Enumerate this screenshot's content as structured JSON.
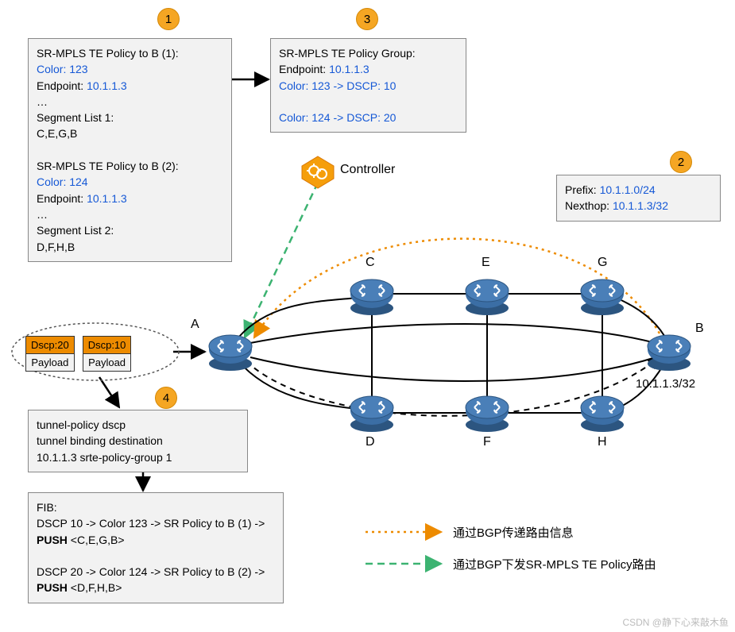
{
  "badges": {
    "b1": "1",
    "b2": "2",
    "b3": "3",
    "b4": "4"
  },
  "box1": {
    "l1": "SR-MPLS TE Policy to B (1):",
    "l2": "Color: 123",
    "l3": "Endpoint: 10.1.1.3",
    "l4": "…",
    "l5": " Segment List 1:",
    "l6": "  C,E,G,B",
    "l7": "",
    "l8": "SR-MPLS TE Policy to B (2):",
    "l9": "Color: 124",
    "l10": "Endpoint: 10.1.1.3",
    "l11": "…",
    "l12": " Segment List 2:",
    "l13": "  D,F,H,B"
  },
  "box3": {
    "l1": "SR-MPLS TE Policy Group:",
    "l2": "Endpoint: 10.1.1.3",
    "l3": "Color: 123 -> DSCP: 10",
    "l4": "",
    "l5": "Color: 124 -> DSCP: 20"
  },
  "box2": {
    "l1": "Prefix: 10.1.1.0/24",
    "l2": "Nexthop: 10.1.1.3/32"
  },
  "box4": {
    "l1": "tunnel-policy dscp",
    "l2": " tunnel binding destination",
    "l3": "10.1.1.3 srte-policy-group 1"
  },
  "box5": {
    "l1": "FIB:",
    "l2a": "DSCP 10 -> Color 123 -> SR Policy to B (1) -> ",
    "l2b": "PUSH",
    "l2c": " <C,E,G,B>",
    "l3": "",
    "l4a": "DSCP 20 -> Color 124 -> SR Policy to B (2) -> ",
    "l4b": "PUSH",
    "l4c": " <D,F,H,B>"
  },
  "packets": {
    "p1dscp": "Dscp:20",
    "p1pay": "Payload",
    "p2dscp": "Dscp:10",
    "p2pay": "Payload"
  },
  "controller": "Controller",
  "nodeB_ip": "10.1.1.3/32",
  "nodes": {
    "A": "A",
    "B": "B",
    "C": "C",
    "D": "D",
    "E": "E",
    "F": "F",
    "G": "G",
    "H": "H"
  },
  "legend": {
    "orange": "通过BGP传递路由信息",
    "green": "通过BGP下发SR-MPLS TE Policy路由"
  },
  "watermark": "CSDN @静下心来敲木鱼",
  "colors": {
    "orange": "#f5a623",
    "orangeDot": "#ed8b00",
    "blueText": "#1558d6",
    "node": "#3b6ea5",
    "nodeDark": "#2c5580",
    "green": "#3cb371",
    "boxBg": "#f2f2f2",
    "boxBorder": "#888"
  }
}
